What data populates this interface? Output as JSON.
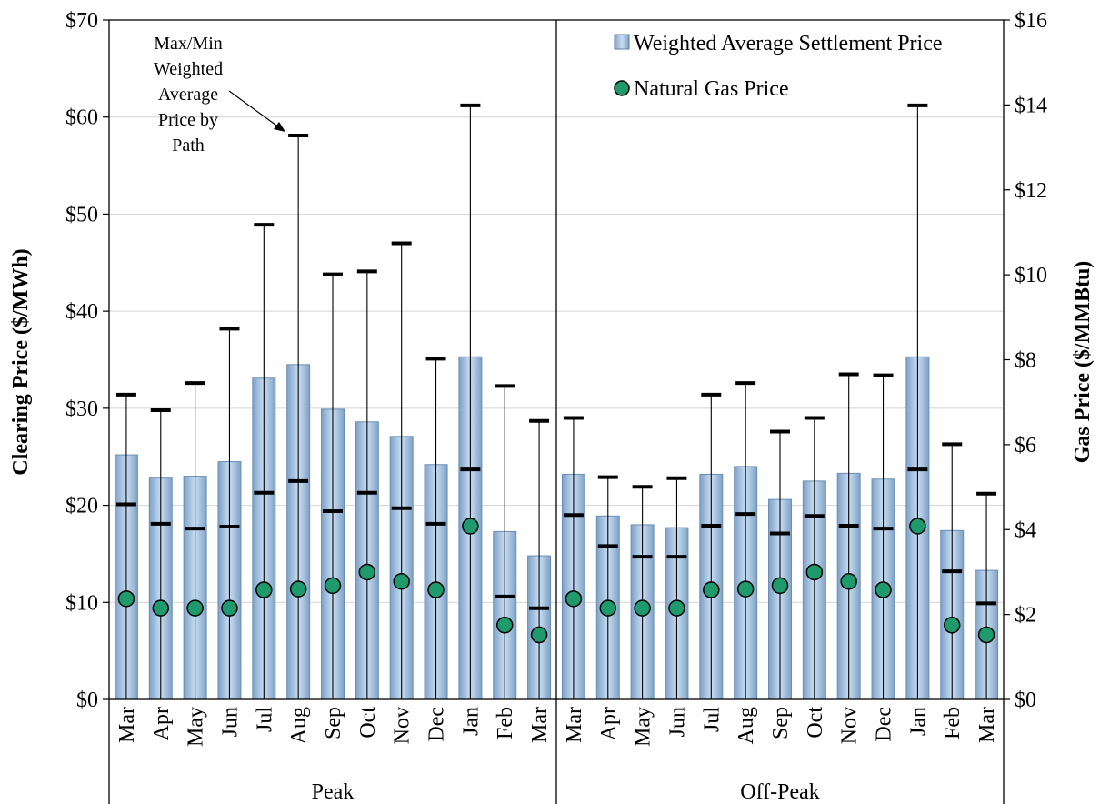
{
  "chart_data": {
    "type": "bar",
    "ylabel": "Clearing Price ($/MWh)",
    "y2label": "Gas Price ($/MMBtu)",
    "ylim": [
      0,
      70
    ],
    "y2lim": [
      0,
      16
    ],
    "yticks": [
      "$0",
      "$10",
      "$20",
      "$30",
      "$40",
      "$50",
      "$60",
      "$70"
    ],
    "y2ticks": [
      "$0",
      "$2",
      "$4",
      "$6",
      "$8",
      "$10",
      "$12",
      "$14",
      "$16"
    ],
    "grid": true,
    "legend_position": "top-right",
    "annotation": [
      "Max/Min",
      "Weighted",
      "Average",
      "Price by",
      "Path"
    ],
    "legend": {
      "bar_label": "Weighted Average Settlement Price",
      "dot_label": "Natural Gas Price"
    },
    "groups": [
      {
        "name": "Peak",
        "categories": [
          "Mar",
          "Apr",
          "May",
          "Jun",
          "Jul",
          "Aug",
          "Sep",
          "Oct",
          "Nov",
          "Dec",
          "Jan",
          "Feb",
          "Mar"
        ],
        "weighted_avg": [
          25.2,
          22.8,
          23.0,
          24.5,
          33.1,
          34.5,
          29.9,
          28.6,
          27.1,
          24.2,
          35.3,
          17.3,
          14.8
        ],
        "max": [
          31.4,
          29.8,
          32.6,
          38.2,
          48.9,
          58.1,
          43.8,
          44.1,
          47.0,
          35.1,
          61.2,
          32.3,
          28.7
        ],
        "min": [
          20.1,
          18.1,
          17.6,
          17.8,
          21.3,
          22.5,
          19.4,
          21.3,
          19.7,
          18.1,
          23.7,
          10.6,
          9.4
        ],
        "gas_price": [
          2.37,
          2.15,
          2.15,
          2.15,
          2.58,
          2.6,
          2.68,
          3.0,
          2.78,
          2.58,
          4.08,
          1.75,
          1.52
        ]
      },
      {
        "name": "Off-Peak",
        "categories": [
          "Mar",
          "Apr",
          "May",
          "Jun",
          "Jul",
          "Aug",
          "Sep",
          "Oct",
          "Nov",
          "Dec",
          "Jan",
          "Feb",
          "Mar"
        ],
        "weighted_avg": [
          23.2,
          18.9,
          18.0,
          17.7,
          23.2,
          24.0,
          20.6,
          22.5,
          23.3,
          22.7,
          35.3,
          17.4,
          13.3
        ],
        "max": [
          29.0,
          22.9,
          21.9,
          22.8,
          31.4,
          32.6,
          27.6,
          29.0,
          33.5,
          33.4,
          61.2,
          26.3,
          21.2
        ],
        "min": [
          19.0,
          15.8,
          14.7,
          14.7,
          17.9,
          19.1,
          17.1,
          18.9,
          17.9,
          17.6,
          23.7,
          13.2,
          9.9
        ],
        "gas_price": [
          2.37,
          2.15,
          2.15,
          2.15,
          2.58,
          2.6,
          2.68,
          3.0,
          2.78,
          2.58,
          4.08,
          1.75,
          1.52
        ]
      }
    ]
  }
}
